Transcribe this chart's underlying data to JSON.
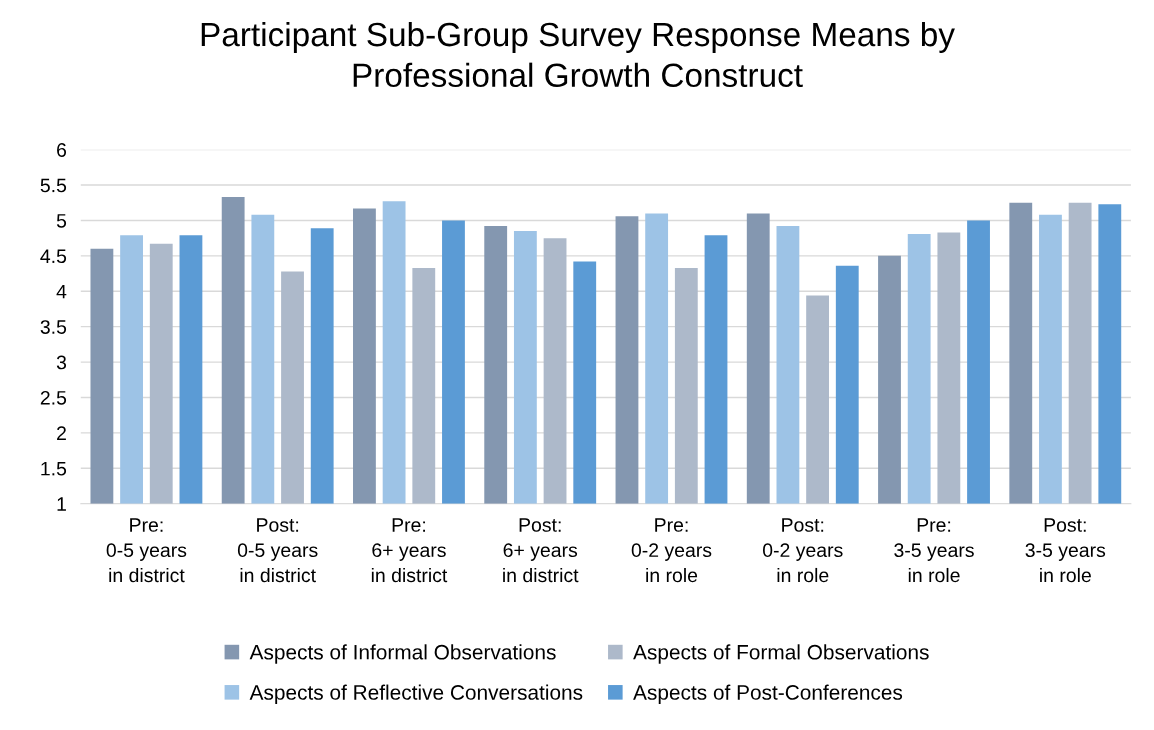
{
  "chart_data": {
    "type": "bar",
    "title": "Participant Sub-Group Survey Response Means by\nProfessional Growth Construct",
    "categories": [
      "Pre:\n0-5 years\nin district",
      "Post:\n0-5 years\nin district",
      "Pre:\n6+ years\nin district",
      "Post:\n6+ years\nin district",
      "Pre:\n0-2 years\nin role",
      "Post:\n0-2 years\nin role",
      "Pre:\n3-5 years\nin role",
      "Post:\n3-5 years\nin role"
    ],
    "series": [
      {
        "name": "Aspects of Informal Observations",
        "color": "#8497b0",
        "values": [
          4.6,
          5.33,
          5.17,
          4.92,
          5.06,
          5.1,
          4.5,
          5.25
        ]
      },
      {
        "name": "Aspects of Reflective Conversations",
        "color": "#9dc3e6",
        "values": [
          4.79,
          5.08,
          5.27,
          4.85,
          5.1,
          4.92,
          4.81,
          5.08
        ]
      },
      {
        "name": "Aspects of Formal Observations",
        "color": "#adb9ca",
        "values": [
          4.67,
          4.28,
          4.33,
          4.75,
          4.33,
          3.94,
          4.83,
          5.25
        ]
      },
      {
        "name": "Aspects of Post-Conferences",
        "color": "#5b9bd5",
        "values": [
          4.79,
          4.89,
          5.0,
          4.42,
          4.79,
          4.36,
          5.0,
          5.23
        ]
      }
    ],
    "ylim": [
      1,
      6
    ],
    "yticks": [
      1,
      1.5,
      2,
      2.5,
      3,
      3.5,
      4,
      4.5,
      5,
      5.5,
      6
    ],
    "grid": "y",
    "legend": "bottom"
  }
}
